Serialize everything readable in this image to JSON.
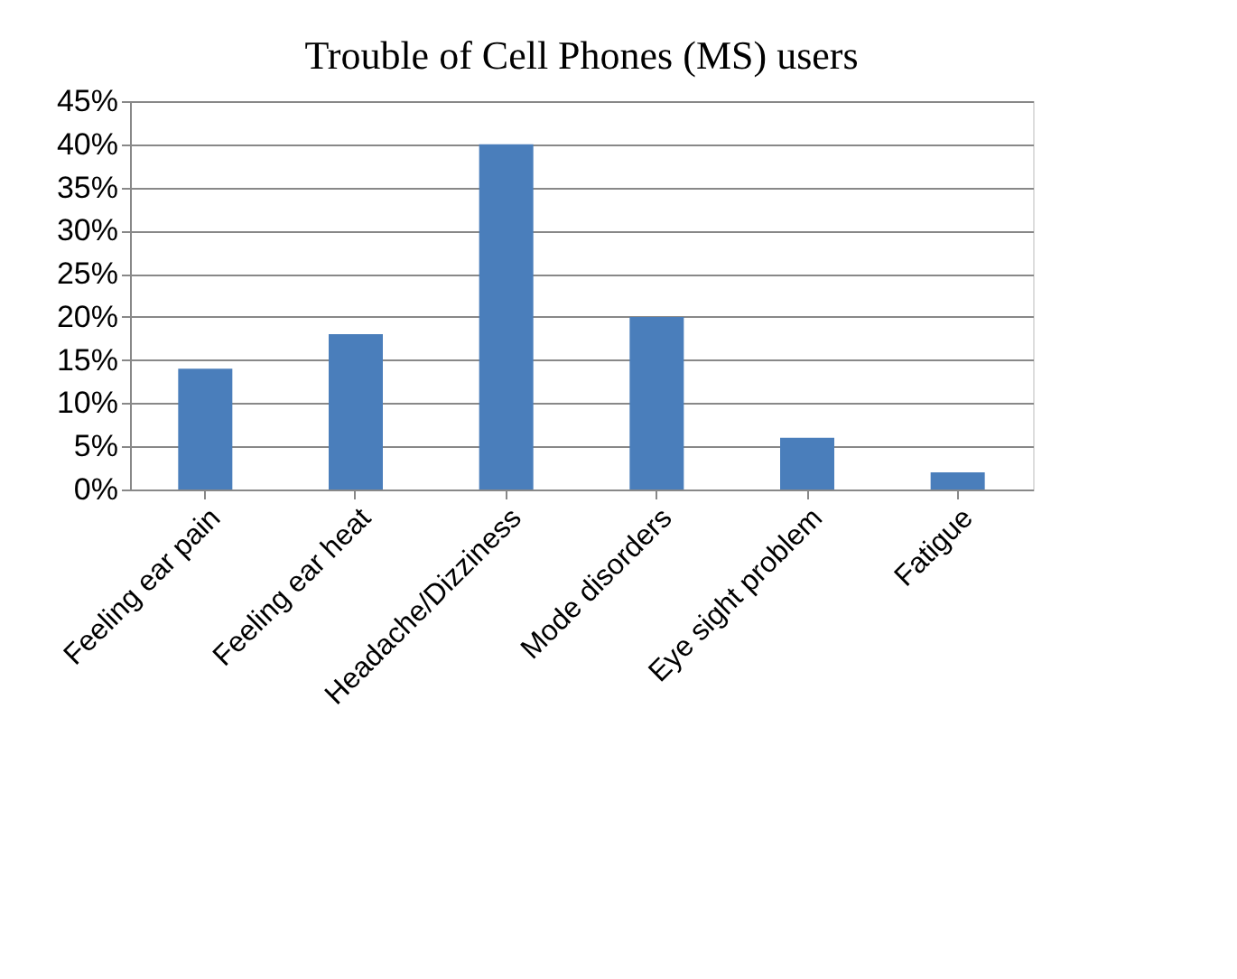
{
  "chart_data": {
    "type": "bar",
    "title": "Trouble of Cell Phones (MS) users",
    "categories": [
      "Feeling ear pain",
      "Feeling ear heat",
      "Headache/Dizziness",
      "Mode disorders",
      "Eye sight problem",
      "Fatigue"
    ],
    "values": [
      14,
      18,
      40,
      20,
      6,
      2
    ],
    "color": "#4a7ebb",
    "ylim": [
      0,
      45
    ],
    "yticks": [
      {
        "value": 0,
        "label": "0%"
      },
      {
        "value": 5,
        "label": "5%"
      },
      {
        "value": 10,
        "label": "10%"
      },
      {
        "value": 15,
        "label": "15%"
      },
      {
        "value": 20,
        "label": "20%"
      },
      {
        "value": 25,
        "label": "25%"
      },
      {
        "value": 30,
        "label": "30%"
      },
      {
        "value": 35,
        "label": "35%"
      },
      {
        "value": 40,
        "label": "40%"
      },
      {
        "value": 45,
        "label": "45%"
      }
    ],
    "grid": "y"
  }
}
